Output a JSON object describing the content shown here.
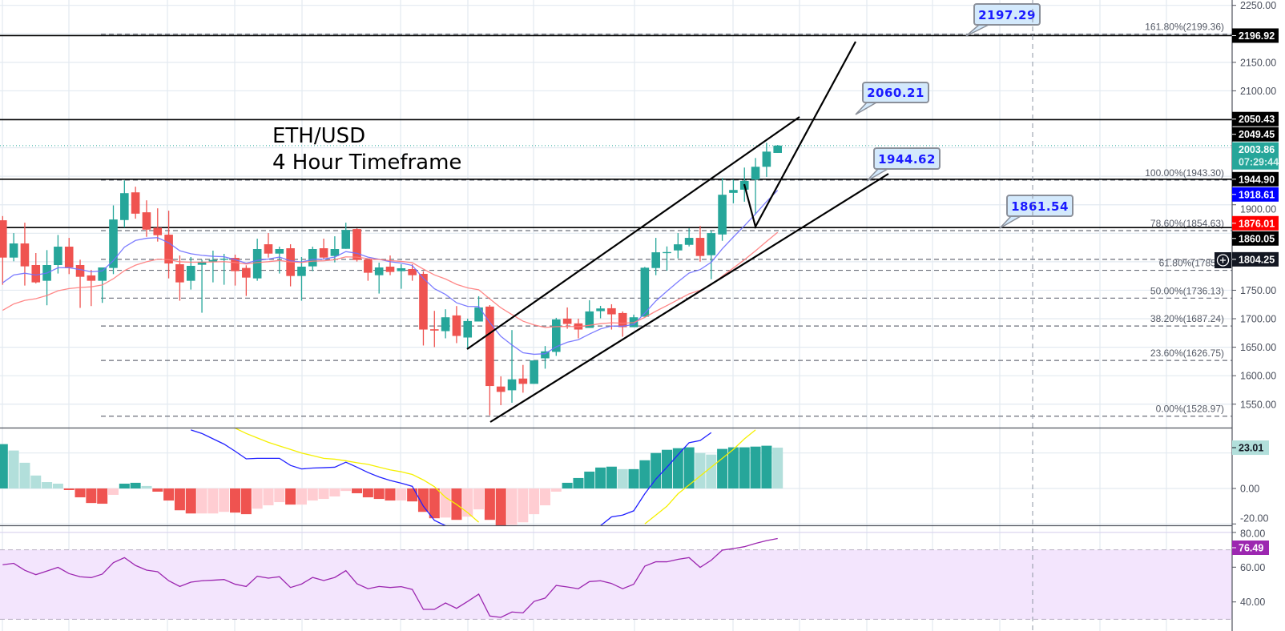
{
  "title": {
    "line1": "ETH/USD",
    "line2": "4 Hour Timeframe"
  },
  "colors": {
    "up": "#26a69a",
    "down": "#ef5350",
    "hist_up_strong": "#26a69a",
    "hist_up_weak": "#b2dfdb",
    "hist_down_strong": "#ef5350",
    "hist_down_weak": "#ffcdd2",
    "ema_fast": "#6f6fff",
    "ema_slow": "#ff7b7b",
    "macd_line": "#2020ff",
    "signal_line": "#f5f000",
    "rsi_line": "#9c27b0",
    "rsi_band": "#f3e5fd",
    "callout_fill": "#d3e9fc",
    "callout_text": "#1a1aff"
  },
  "price_axis": {
    "ticks": [
      {
        "label": "2250.00",
        "value": 2250
      },
      {
        "label": "2150.00",
        "value": 2150
      },
      {
        "label": "2100.00",
        "value": 2100
      },
      {
        "label": "1900.00",
        "value": 1900
      },
      {
        "label": "1750.00",
        "value": 1750
      },
      {
        "label": "1700.00",
        "value": 1700
      },
      {
        "label": "1650.00",
        "value": 1650
      },
      {
        "label": "1600.00",
        "value": 1600
      },
      {
        "label": "1550.00",
        "value": 1550
      }
    ],
    "badges": [
      {
        "label": "2196.92",
        "value": 2196.92,
        "color": "#000000",
        "text_color": "#ffffff"
      },
      {
        "label": "2050.43",
        "value": 2050.43,
        "color": "#000000",
        "text_color": "#ffffff"
      },
      {
        "label": "2049.45",
        "value": 2049.45,
        "color": "#000000",
        "text_color": "#ffffff"
      },
      {
        "label": "1944.90",
        "value": 1944.9,
        "color": "#000000",
        "text_color": "#ffffff"
      },
      {
        "label": "1918.61",
        "value": 1918.61,
        "color": "#0000ff",
        "text_color": "#ffffff"
      },
      {
        "label": "1876.01",
        "value": 1876.01,
        "color": "#ff0000",
        "text_color": "#ffffff"
      },
      {
        "label": "1860.05",
        "value": 1860.05,
        "color": "#000000",
        "text_color": "#ffffff"
      },
      {
        "label": "1804.25",
        "value": 1804.25,
        "color": "#131722",
        "text_color": "#ffffff"
      }
    ],
    "last_price": {
      "label": "2003.86",
      "value": 2003.86,
      "countdown": "07:29:44",
      "color": "#26a69a"
    }
  },
  "horizontal_lines": [
    2196.92,
    2049.45,
    1944.9,
    1860.05
  ],
  "fib_levels": [
    {
      "label": "161.80%(2199.36)",
      "price": 2199.36
    },
    {
      "label": "100.00%(1943.30)",
      "price": 1943.3
    },
    {
      "label": "78.60%(1854.63)",
      "price": 1854.63
    },
    {
      "label": "61.80%(1785.0",
      "price": 1785.0
    },
    {
      "label": "50.00%(1736.13)",
      "price": 1736.13
    },
    {
      "label": "38.20%(1687.24)",
      "price": 1687.24
    },
    {
      "label": "23.60%(1626.75)",
      "price": 1626.75
    },
    {
      "label": "0.00%(1528.97)",
      "price": 1528.97
    }
  ],
  "extra_dashed_level": 1804.25,
  "callouts": [
    {
      "label": "2197.29"
    },
    {
      "label": "2060.21"
    },
    {
      "label": "1944.62"
    },
    {
      "label": "1861.54"
    }
  ],
  "crosshair": {
    "icon": "plus-circle-icon"
  },
  "macd": {
    "badge": {
      "label": "23.01",
      "value": 23.01,
      "color": "#b2dfdb"
    },
    "ticks": [
      {
        "label": "0.00",
        "value": 0
      },
      {
        "label": "-20.00",
        "value": -20
      }
    ]
  },
  "rsi": {
    "badge": {
      "label": "76.49",
      "value": 76.49,
      "color": "#9c27b0"
    },
    "ticks": [
      {
        "label": "80.00",
        "value": 80
      },
      {
        "label": "60.00",
        "value": 60
      },
      {
        "label": "40.00",
        "value": 40
      }
    ],
    "upper_band": 70,
    "lower_band": 30
  },
  "chart_data": [
    {
      "type": "candlestick",
      "title": "ETH/USD 4 Hour Timeframe",
      "ylim": [
        1510,
        2260
      ],
      "grid": true,
      "ohlc": [
        [
          1872.8,
          1880.2,
          1759.6,
          1807.3
        ],
        [
          1807.3,
          1850.3,
          1800.8,
          1832.1
        ],
        [
          1832.1,
          1868.6,
          1758.2,
          1791.9
        ],
        [
          1794.2,
          1815.3,
          1762.0,
          1763.8
        ],
        [
          1766.6,
          1820.4,
          1723.6,
          1794.2
        ],
        [
          1794.2,
          1847.0,
          1779.3,
          1826.5
        ],
        [
          1826.5,
          1841.9,
          1778.3,
          1790.0
        ],
        [
          1794.2,
          1803.6,
          1719.0,
          1773.6
        ],
        [
          1776.0,
          1785.8,
          1722.2,
          1766.6
        ],
        [
          1766.6,
          1790.0,
          1727.8,
          1790.0
        ],
        [
          1789.1,
          1898.9,
          1778.3,
          1874.2
        ],
        [
          1873.2,
          1942.9,
          1860.1,
          1920.4
        ],
        [
          1921.8,
          1931.7,
          1875.6,
          1884.4
        ],
        [
          1886.8,
          1907.8,
          1843.8,
          1856.4
        ],
        [
          1859.7,
          1893.8,
          1835.4,
          1846.6
        ],
        [
          1847.5,
          1889.6,
          1770.8,
          1797.0
        ],
        [
          1795.6,
          1811.0,
          1731.6,
          1763.8
        ],
        [
          1766.6,
          1808.3,
          1751.2,
          1792.8
        ],
        [
          1794.7,
          1803.6,
          1710.5,
          1799.9
        ],
        [
          1800.4,
          1819.5,
          1763.8,
          1803.1
        ],
        [
          1803.6,
          1813.9,
          1759.6,
          1805.4
        ],
        [
          1806.8,
          1812.5,
          1758.2,
          1783.5
        ],
        [
          1789.1,
          1793.8,
          1740.0,
          1772.2
        ],
        [
          1770.8,
          1840.5,
          1766.6,
          1822.3
        ],
        [
          1830.7,
          1850.3,
          1807.3,
          1814.3
        ],
        [
          1814.3,
          1826.5,
          1779.3,
          1822.3
        ],
        [
          1823.7,
          1830.7,
          1756.8,
          1775.0
        ],
        [
          1775.0,
          1808.3,
          1731.6,
          1791.4
        ],
        [
          1791.9,
          1826.5,
          1783.5,
          1822.3
        ],
        [
          1823.7,
          1840.5,
          1804.0,
          1807.3
        ],
        [
          1810.1,
          1844.7,
          1798.9,
          1822.3
        ],
        [
          1822.7,
          1868.6,
          1822.7,
          1855.9
        ],
        [
          1857.3,
          1858.7,
          1800.4,
          1803.1
        ],
        [
          1804.0,
          1804.0,
          1766.6,
          1780.7
        ],
        [
          1776.4,
          1798.4,
          1744.2,
          1790.0
        ],
        [
          1791.4,
          1811.0,
          1776.4,
          1782.1
        ],
        [
          1783.5,
          1795.6,
          1752.6,
          1788.6
        ],
        [
          1787.2,
          1795.6,
          1766.6,
          1776.4
        ],
        [
          1778.7,
          1783.0,
          1653.0,
          1681.0
        ],
        [
          1681.5,
          1713.8,
          1650.2,
          1679.2
        ],
        [
          1678.2,
          1716.6,
          1665.6,
          1702.5
        ],
        [
          1705.8,
          1722.2,
          1657.2,
          1669.8
        ],
        [
          1667.0,
          1700.2,
          1648.8,
          1696.0
        ],
        [
          1695.1,
          1739.5,
          1695.1,
          1719.8
        ],
        [
          1721.3,
          1724.0,
          1530.5,
          1581.9
        ],
        [
          1581.0,
          1598.8,
          1548.3,
          1571.6
        ],
        [
          1574.4,
          1680.1,
          1552.5,
          1593.6
        ],
        [
          1595.0,
          1618.9,
          1570.2,
          1585.7
        ],
        [
          1585.7,
          1626.8,
          1585.7,
          1626.8
        ],
        [
          1630.5,
          1652.0,
          1612.3,
          1642.7
        ],
        [
          1641.8,
          1701.6,
          1634.8,
          1698.8
        ],
        [
          1700.2,
          1719.8,
          1682.4,
          1690.9
        ],
        [
          1691.8,
          1700.2,
          1665.6,
          1681.0
        ],
        [
          1683.9,
          1732.5,
          1683.9,
          1712.8
        ],
        [
          1713.3,
          1722.6,
          1700.7,
          1718.0
        ],
        [
          1718.4,
          1725.4,
          1681.0,
          1707.7
        ],
        [
          1710.0,
          1712.8,
          1668.4,
          1685.2
        ],
        [
          1685.2,
          1707.2,
          1685.2,
          1702.5
        ],
        [
          1703.5,
          1790.9,
          1703.5,
          1789.5
        ],
        [
          1789.0,
          1841.9,
          1776.4,
          1816.6
        ],
        [
          1815.1,
          1826.9,
          1784.4,
          1817.0
        ],
        [
          1819.9,
          1850.3,
          1805.9,
          1830.6
        ],
        [
          1829.7,
          1858.7,
          1826.9,
          1841.9
        ],
        [
          1841.9,
          1862.9,
          1800.2,
          1810.1
        ],
        [
          1811.5,
          1854.9,
          1769.4,
          1850.3
        ],
        [
          1847.9,
          1947.0,
          1836.7,
          1917.6
        ],
        [
          1920.9,
          1944.3,
          1902.6,
          1926.0
        ],
        [
          1926.5,
          1965.3,
          1905.4,
          1941.9
        ],
        [
          1944.3,
          1982.1,
          1883.0,
          1966.7
        ],
        [
          1966.7,
          2008.8,
          1948.9,
          1993.3
        ],
        [
          1991.0,
          2005.0,
          1991.0,
          2003.9
        ]
      ]
    },
    {
      "type": "bar",
      "ylim": [
        -21,
        34
      ],
      "histogram": [
        25,
        21.4,
        14.5,
        7.3,
        3.6,
        2.7,
        -0.9,
        -5,
        -8.2,
        -8.6,
        -3.6,
        2.7,
        3.2,
        1.4,
        -1.8,
        -6.8,
        -12.3,
        -14.1,
        -14.1,
        -14.1,
        -13.2,
        -13.6,
        -14.5,
        -11.4,
        -9.5,
        -7.7,
        -9.1,
        -9.1,
        -6.8,
        -5.9,
        -4.5,
        -1.4,
        -2.7,
        -5,
        -5.9,
        -6.8,
        -6.8,
        -7.3,
        -13.2,
        -16.8,
        -16.4,
        -17.7,
        -15.9,
        -11.8,
        -17.7,
        -21.5,
        -20.5,
        -19.1,
        -14.5,
        -9.5,
        -1.8,
        3.2,
        5.9,
        9.5,
        11.8,
        12.3,
        10.9,
        10.9,
        15.9,
        20,
        21.8,
        22.7,
        23.2,
        20,
        19.1,
        22.3,
        23.2,
        23.2,
        23.6,
        24.1,
        23.01
      ],
      "macd_line": [
        null,
        null,
        null,
        null,
        null,
        null,
        null,
        null,
        null,
        null,
        null,
        null,
        null,
        null,
        null,
        null,
        null,
        33,
        31,
        28,
        25,
        21,
        16.7,
        17,
        17,
        17,
        13,
        11,
        11.5,
        11.7,
        12,
        14.8,
        12,
        9,
        6.5,
        4.5,
        3,
        1.2,
        -10,
        -18,
        -21,
        null,
        null,
        null,
        null,
        null,
        null,
        null,
        null,
        null,
        null,
        null,
        null,
        null,
        -21,
        -16,
        -15,
        -12.6,
        -3,
        5.3,
        12,
        19,
        25.8,
        27,
        31.5,
        null,
        null,
        null,
        null,
        null,
        null
      ],
      "signal_line": [
        null,
        null,
        null,
        null,
        null,
        null,
        null,
        null,
        null,
        null,
        null,
        null,
        null,
        null,
        null,
        null,
        null,
        null,
        null,
        null,
        null,
        34,
        31,
        28.5,
        26,
        24,
        22,
        20,
        18.5,
        17,
        16.5,
        15.6,
        14.5,
        13.6,
        12,
        10.5,
        9.4,
        7.9,
        4.8,
        1,
        -5,
        -9,
        -13.6,
        -19,
        null,
        null,
        null,
        null,
        null,
        null,
        null,
        null,
        null,
        null,
        null,
        null,
        null,
        null,
        -20,
        -15,
        -10,
        -3,
        2,
        7,
        12,
        17,
        22,
        28,
        33,
        null,
        null
      ]
    },
    {
      "type": "line",
      "ylim": [
        28,
        84
      ],
      "values": [
        61.4,
        62.2,
        58.2,
        55.7,
        57.8,
        59.9,
        56.3,
        54.5,
        54,
        56,
        62.6,
        65.5,
        61,
        58.3,
        57.4,
        52.2,
        48.9,
        51.4,
        52.2,
        52.5,
        52.9,
        50.2,
        48.9,
        54.8,
        53.7,
        54.5,
        48.3,
        50.3,
        54.1,
        52.3,
        54.1,
        58,
        50.5,
        47.6,
        48.9,
        48.3,
        48.8,
        47.2,
        35.7,
        35.7,
        39.4,
        36.3,
        40.3,
        44.5,
        31.9,
        31.1,
        34.2,
        33.7,
        40.3,
        42.2,
        49.5,
        48.6,
        47.6,
        51.7,
        52.2,
        50.6,
        47.6,
        50.2,
        60.6,
        63.1,
        63.1,
        64.5,
        65.5,
        59.9,
        64,
        69.8,
        70.7,
        71.8,
        73.7,
        75.3,
        76.49
      ]
    }
  ]
}
